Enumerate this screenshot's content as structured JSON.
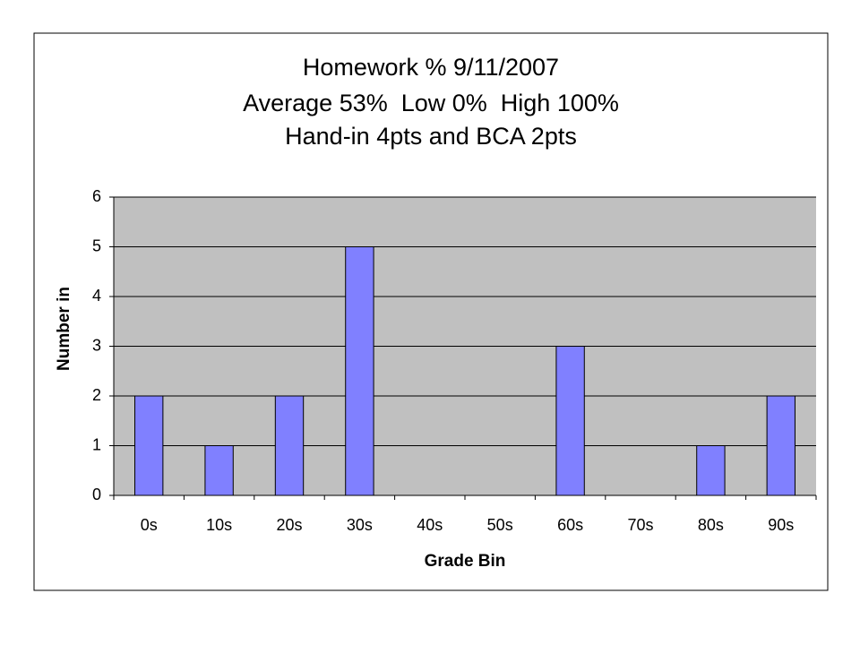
{
  "chart_data": {
    "type": "bar",
    "title": [
      "Homework % 9/11/2007",
      "Average 53%  Low 0%  High 100%",
      "Hand-in 4pts and BCA 2pts"
    ],
    "x_label": "Grade Bin",
    "y_label": "Number in",
    "categories": [
      "0s",
      "10s",
      "20s",
      "30s",
      "40s",
      "50s",
      "60s",
      "70s",
      "80s",
      "90s"
    ],
    "values": [
      2,
      1,
      2,
      5,
      0,
      0,
      3,
      0,
      1,
      2
    ],
    "color": "#8080ff",
    "ylim": [
      0,
      6
    ],
    "yticks": [
      0,
      1,
      2,
      3,
      4,
      5,
      6
    ],
    "grid": true
  }
}
